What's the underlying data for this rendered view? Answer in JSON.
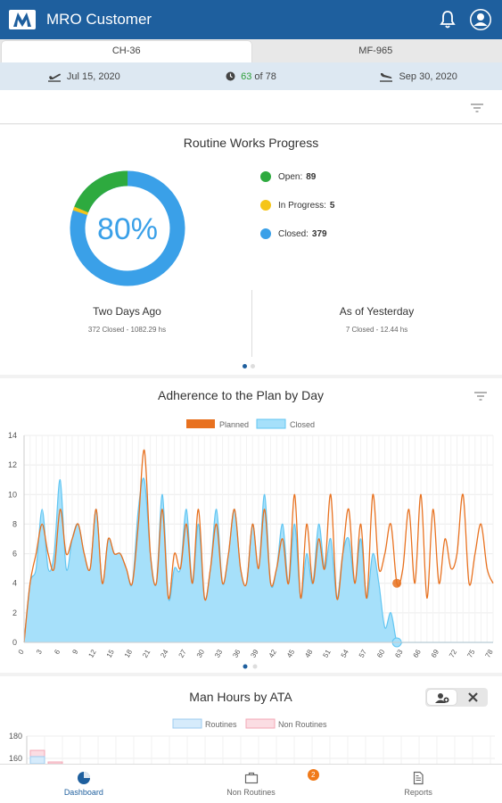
{
  "app": {
    "title": "MRO Customer"
  },
  "tabs": [
    {
      "label": "CH-36",
      "active": true
    },
    {
      "label": "MF-965",
      "active": false
    }
  ],
  "info": {
    "start_date": "Jul 15, 2020",
    "progress_done": "63",
    "progress_of": "of 78",
    "end_date": "Sep 30, 2020"
  },
  "routine": {
    "title": "Routine Works Progress",
    "percent": "80%",
    "legend": [
      {
        "label": "Open:",
        "value": "89",
        "color": "#2eaa3f"
      },
      {
        "label": "In Progress:",
        "value": "5",
        "color": "#f5c518"
      },
      {
        "label": "Closed:",
        "value": "379",
        "color": "#3aa0e8"
      }
    ],
    "left_heading": "Two Days Ago",
    "left_sub": "372 Closed - 1082.29 hs",
    "right_heading": "As of Yesterday",
    "right_sub": "7 Closed - 12.44 hs"
  },
  "adherence": {
    "title": "Adherence to the Plan by Day"
  },
  "manhours": {
    "title": "Man Hours by ATA",
    "legend": [
      {
        "label": "Routines"
      },
      {
        "label": "Non Routines"
      }
    ],
    "yticks": [
      "180",
      "160"
    ]
  },
  "nav": [
    {
      "label": "Dashboard",
      "active": true
    },
    {
      "label": "Non Routines",
      "active": false,
      "badge": "2"
    },
    {
      "label": "Reports",
      "active": false
    }
  ],
  "colors": {
    "primary": "#1e5f9e",
    "planned": "#e8711f",
    "closed": "#62c6f2",
    "closed_fill": "#a6e0fa"
  },
  "chart_data": [
    {
      "type": "pie",
      "title": "Routine Works Progress",
      "labels": [
        "Open",
        "In Progress",
        "Closed"
      ],
      "values": [
        89,
        5,
        379
      ]
    },
    {
      "type": "line",
      "title": "Adherence to the Plan by Day",
      "ylim": [
        0,
        14
      ],
      "yticks": [
        0,
        2,
        4,
        6,
        8,
        10,
        12,
        14
      ],
      "xticks": [
        0,
        3,
        6,
        9,
        12,
        15,
        18,
        21,
        24,
        27,
        30,
        33,
        36,
        39,
        42,
        45,
        48,
        51,
        54,
        57,
        60,
        63,
        66,
        69,
        72,
        75,
        78
      ],
      "legend_position": "top",
      "series": [
        {
          "name": "Planned",
          "x": [
            0,
            1,
            2,
            3,
            4,
            5,
            6,
            7,
            8,
            9,
            10,
            11,
            12,
            13,
            14,
            15,
            16,
            17,
            18,
            19,
            20,
            21,
            22,
            23,
            24,
            25,
            26,
            27,
            28,
            29,
            30,
            31,
            32,
            33,
            34,
            35,
            36,
            37,
            38,
            39,
            40,
            41,
            42,
            43,
            44,
            45,
            46,
            47,
            48,
            49,
            50,
            51,
            52,
            53,
            54,
            55,
            56,
            57,
            58,
            59,
            60,
            61,
            62,
            63,
            64,
            65,
            66,
            67,
            68,
            69,
            70,
            71,
            72,
            73,
            74,
            75,
            76,
            77,
            78
          ],
          "values": [
            0,
            4,
            6,
            8,
            6,
            5,
            9,
            6,
            7,
            8,
            6,
            5,
            9,
            4,
            7,
            6,
            6,
            5,
            4,
            8,
            13,
            6,
            4,
            9,
            3,
            6,
            5,
            8,
            4,
            9,
            3,
            5,
            8,
            4,
            6,
            9,
            5,
            4,
            8,
            5,
            9,
            4,
            5,
            7,
            4,
            10,
            3,
            8,
            4,
            7,
            5,
            10,
            3,
            6,
            9,
            4,
            8,
            3,
            10,
            5,
            6,
            8,
            4,
            5,
            9,
            4,
            10,
            3,
            9,
            4,
            7,
            5,
            6,
            10,
            4,
            6,
            8,
            5,
            4
          ]
        },
        {
          "name": "Closed",
          "x": [
            0,
            1,
            2,
            3,
            4,
            5,
            6,
            7,
            8,
            9,
            10,
            11,
            12,
            13,
            14,
            15,
            16,
            17,
            18,
            19,
            20,
            21,
            22,
            23,
            24,
            25,
            26,
            27,
            28,
            29,
            30,
            31,
            32,
            33,
            34,
            35,
            36,
            37,
            38,
            39,
            40,
            41,
            42,
            43,
            44,
            45,
            46,
            47,
            48,
            49,
            50,
            51,
            52,
            53,
            54,
            55,
            56,
            57,
            58,
            59,
            60,
            61,
            62,
            63,
            64,
            65,
            66,
            67,
            68,
            69,
            70,
            71,
            72,
            73,
            74,
            75,
            76,
            77,
            78
          ],
          "values": [
            0,
            4,
            5,
            9,
            5,
            6,
            11,
            5,
            7,
            8,
            6,
            5,
            9,
            4,
            7,
            6,
            6,
            5,
            4,
            9,
            11,
            6,
            4,
            10,
            3,
            5,
            5,
            9,
            4,
            8,
            3,
            5,
            9,
            4,
            6,
            9,
            5,
            4,
            8,
            5,
            10,
            4,
            5,
            8,
            4,
            8,
            3,
            6,
            4,
            8,
            5,
            7,
            3,
            6,
            7,
            4,
            7,
            3,
            6,
            4,
            1,
            2,
            0,
            0,
            0,
            0,
            0,
            0,
            0,
            0,
            0,
            0,
            0,
            0,
            0,
            0,
            0,
            0,
            0
          ]
        }
      ]
    },
    {
      "type": "bar",
      "title": "Man Hours by ATA",
      "yticks": [
        180,
        160
      ],
      "series": [
        {
          "name": "Routines"
        },
        {
          "name": "Non Routines"
        }
      ]
    }
  ]
}
